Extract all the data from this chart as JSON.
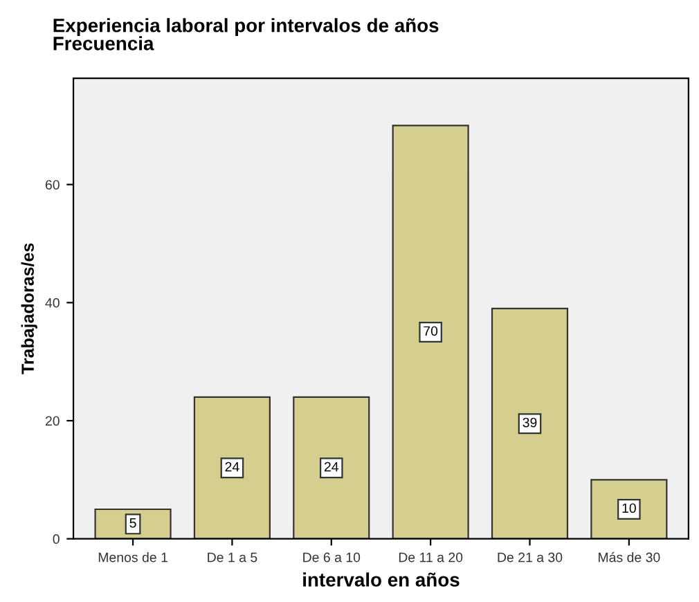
{
  "chart_data": {
    "type": "bar",
    "title": "Experiencia laboral por intervalos de años",
    "subtitle": "Frecuencia",
    "xlabel": "intervalo en años",
    "ylabel": "Trabajadoras/es",
    "categories": [
      "Menos de 1",
      "De 1 a 5",
      "De 6 a 10",
      "De 11 a 20",
      "De 21 a 30",
      "Más de 30"
    ],
    "values": [
      5,
      24,
      24,
      70,
      39,
      10
    ],
    "color": "#d4cf8f",
    "ylim": [
      0,
      78
    ],
    "yticks": [
      0,
      20,
      40,
      60
    ],
    "grid": false,
    "data_labels": true
  }
}
